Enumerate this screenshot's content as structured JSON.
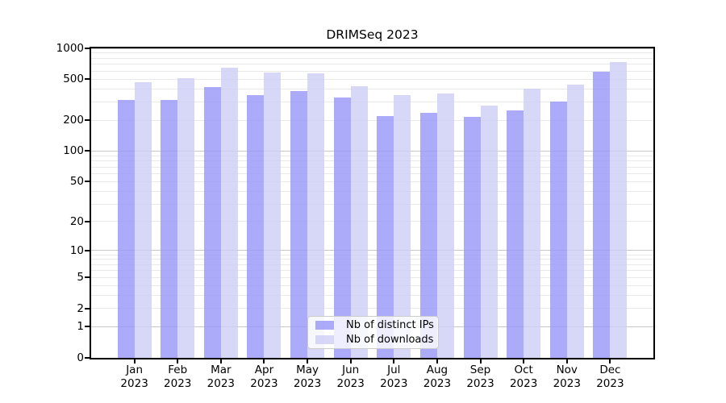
{
  "title": "DRIMSeq 2023",
  "chart_data": {
    "type": "bar",
    "title": "DRIMSeq 2023",
    "categories": [
      "Jan",
      "Feb",
      "Mar",
      "Apr",
      "May",
      "Jun",
      "Jul",
      "Aug",
      "Sep",
      "Oct",
      "Nov",
      "Dec"
    ],
    "category_year": "2023",
    "series": [
      {
        "name": "Nb of distinct IPs",
        "color": "#9696f8",
        "values": [
          318,
          314,
          418,
          350,
          382,
          331,
          219,
          235,
          215,
          248,
          302,
          589
        ]
      },
      {
        "name": "Nb of downloads",
        "color": "#cdcdf5",
        "values": [
          466,
          518,
          644,
          578,
          568,
          425,
          350,
          362,
          277,
          404,
          441,
          731
        ]
      }
    ],
    "bar_alpha": 0.8,
    "yscale": "log1p",
    "ylim": [
      0,
      1000
    ],
    "yticks_labeled": [
      0,
      1,
      2,
      5,
      10,
      20,
      50,
      100,
      200,
      500,
      1000
    ],
    "yticks_minor": [
      3,
      4,
      6,
      7,
      8,
      9,
      30,
      40,
      60,
      70,
      80,
      90,
      300,
      400,
      600,
      700,
      800,
      900
    ],
    "grid": true,
    "grid_decade_color": "#c8c8c8",
    "grid_minor_color": "#e9e9e9",
    "legend_position": "lower center",
    "xlabel": "",
    "ylabel": ""
  }
}
